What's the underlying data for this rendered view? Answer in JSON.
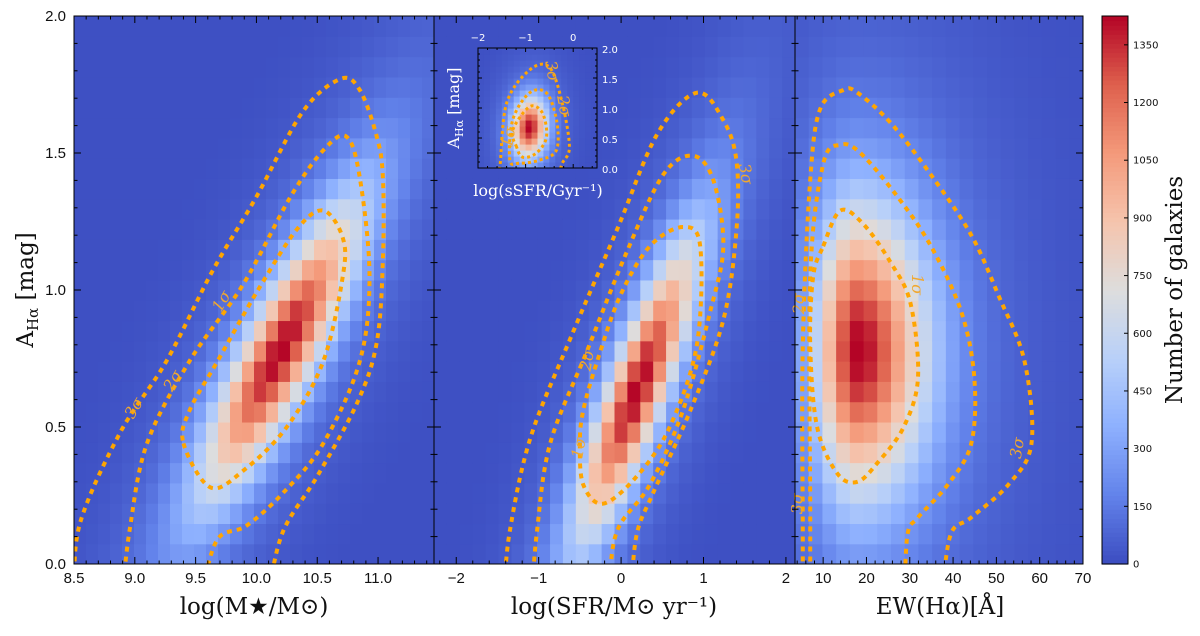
{
  "chart_data": [
    {
      "type": "heatmap",
      "panel": "left",
      "xlabel": "log(M★/M⊙)",
      "ylabel": {
        "main": "A",
        "sub": "Hα",
        "rest": " [mag]"
      },
      "xlim": [
        8.5,
        11.46
      ],
      "ylim": [
        0.0,
        2.0
      ],
      "xticks": [
        8.5,
        9.0,
        9.5,
        10.0,
        10.5,
        11.0
      ],
      "xtick_labels": [
        "8.5",
        "9.0",
        "9.5",
        "10.0",
        "10.5",
        "11.0"
      ],
      "yticks": [
        0.0,
        0.5,
        1.0,
        1.5,
        2.0
      ],
      "ytick_labels": [
        "0.0",
        "0.5",
        "1.0",
        "1.5",
        "2.0"
      ],
      "bin_width": [
        0.1,
        0.074
      ],
      "distribution_estimate": {
        "peak_x": 10.2,
        "peak_y": 0.78,
        "peak_count": 1420,
        "sigma_x": 0.44,
        "sigma_y": 0.36,
        "correlation": 0.86
      },
      "contours": [
        {
          "label": "1σ",
          "closed": true,
          "points": [
            [
              9.4,
              0.44
            ],
            [
              9.62,
              0.28
            ],
            [
              9.89,
              0.34
            ],
            [
              10.25,
              0.5
            ],
            [
              10.55,
              0.74
            ],
            [
              10.71,
              1.05
            ],
            [
              10.71,
              1.19
            ],
            [
              10.55,
              1.29
            ],
            [
              10.33,
              1.22
            ],
            [
              10.0,
              0.99
            ],
            [
              9.68,
              0.74
            ],
            [
              9.45,
              0.56
            ]
          ],
          "label_at": [
            9.75,
            0.95
          ],
          "label_rotation": -60
        },
        {
          "label": "2σ",
          "closed": false,
          "points": [
            [
              8.9,
              -0.1
            ],
            [
              8.96,
              0.13
            ],
            [
              9.1,
              0.44
            ],
            [
              9.45,
              0.74
            ],
            [
              9.89,
              1.02
            ],
            [
              10.28,
              1.34
            ],
            [
              10.55,
              1.51
            ],
            [
              10.74,
              1.56
            ],
            [
              10.85,
              1.41
            ],
            [
              10.93,
              1.05
            ],
            [
              10.85,
              0.74
            ],
            [
              10.55,
              0.44
            ],
            [
              10.22,
              0.26
            ],
            [
              9.92,
              0.14
            ],
            [
              9.68,
              0.09
            ],
            [
              9.55,
              -0.1
            ]
          ],
          "label_at": [
            9.35,
            0.66
          ],
          "label_rotation": -60
        },
        {
          "label": "3σ",
          "closed": false,
          "points": [
            [
              8.5,
              -0.1
            ],
            [
              8.55,
              0.15
            ],
            [
              8.88,
              0.48
            ],
            [
              9.26,
              0.74
            ],
            [
              9.64,
              1.07
            ],
            [
              10.0,
              1.34
            ],
            [
              10.38,
              1.65
            ],
            [
              10.69,
              1.77
            ],
            [
              10.85,
              1.73
            ],
            [
              10.99,
              1.56
            ],
            [
              11.04,
              1.41
            ],
            [
              11.04,
              1.11
            ],
            [
              10.99,
              0.81
            ],
            [
              10.83,
              0.59
            ],
            [
              10.5,
              0.32
            ],
            [
              10.22,
              0.12
            ],
            [
              10.1,
              -0.1
            ]
          ],
          "label_at": [
            9.03,
            0.56
          ],
          "label_rotation": -60
        }
      ]
    },
    {
      "type": "heatmap",
      "panel": "middle",
      "xlabel": "log(SFR/M⊙ yr⁻¹)",
      "xlim": [
        -2.27,
        2.11
      ],
      "ylim": [
        0.0,
        2.0
      ],
      "xticks": [
        -2,
        -1,
        0,
        1,
        2
      ],
      "xtick_labels": [
        "−2",
        "−1",
        "0",
        "1",
        "2"
      ],
      "bin_width": [
        0.16,
        0.074
      ],
      "distribution_estimate": {
        "peak_x": 0.2,
        "peak_y": 0.64,
        "peak_count": 1420,
        "sigma_x": 0.5,
        "sigma_y": 0.37,
        "correlation": 0.86
      },
      "contours": [
        {
          "label": "1σ",
          "closed": true,
          "points": [
            [
              -0.5,
              0.44
            ],
            [
              -0.46,
              0.29
            ],
            [
              -0.22,
              0.22
            ],
            [
              0.19,
              0.32
            ],
            [
              0.59,
              0.5
            ],
            [
              0.92,
              0.8
            ],
            [
              0.96,
              1.16
            ],
            [
              0.75,
              1.23
            ],
            [
              0.35,
              1.16
            ],
            [
              -0.01,
              0.98
            ],
            [
              -0.29,
              0.74
            ],
            [
              -0.46,
              0.56
            ]
          ],
          "label_at": [
            -0.45,
            0.42
          ],
          "label_rotation": -80
        },
        {
          "label": "2σ",
          "closed": false,
          "points": [
            [
              -1.08,
              -0.1
            ],
            [
              -1.02,
              0.12
            ],
            [
              -0.86,
              0.44
            ],
            [
              -0.41,
              0.78
            ],
            [
              0.07,
              1.14
            ],
            [
              0.51,
              1.42
            ],
            [
              0.87,
              1.49
            ],
            [
              1.12,
              1.4
            ],
            [
              1.24,
              1.16
            ],
            [
              1.08,
              0.92
            ],
            [
              0.75,
              0.56
            ],
            [
              0.35,
              0.29
            ],
            [
              -0.05,
              0.12
            ],
            [
              -0.15,
              -0.1
            ]
          ],
          "label_at": [
            -0.35,
            0.74
          ],
          "label_rotation": -80
        },
        {
          "label": "3σ",
          "closed": false,
          "points": [
            [
              -1.42,
              -0.1
            ],
            [
              -1.35,
              0.12
            ],
            [
              -1.1,
              0.46
            ],
            [
              -0.62,
              0.82
            ],
            [
              -0.05,
              1.22
            ],
            [
              0.44,
              1.57
            ],
            [
              0.92,
              1.72
            ],
            [
              1.24,
              1.62
            ],
            [
              1.4,
              1.47
            ],
            [
              1.4,
              1.22
            ],
            [
              1.24,
              0.89
            ],
            [
              0.84,
              0.56
            ],
            [
              0.39,
              0.26
            ],
            [
              0.19,
              0.11
            ],
            [
              0.12,
              -0.1
            ]
          ],
          "label_at": [
            1.45,
            1.42
          ],
          "label_rotation": 80
        }
      ],
      "inset": {
        "xlabel": "log(sSFR/Gyr⁻¹)",
        "ylabel": {
          "main": "A",
          "sub": "Hα",
          "rest": " [mag]"
        },
        "xlim": [
          -2.0,
          0.5
        ],
        "ylim": [
          0.0,
          2.0
        ],
        "xticks": [
          -2,
          -1,
          0
        ],
        "xtick_labels": [
          "−2",
          "−1",
          "0"
        ],
        "yticks": [
          0.0,
          0.5,
          1.0,
          1.5,
          2.0
        ],
        "ytick_labels": [
          "0.0",
          "0.5",
          "1.0",
          "1.5",
          "2.0"
        ],
        "distribution_estimate": {
          "peak_x": -0.92,
          "peak_y": 0.68,
          "peak_count": 1420,
          "sigma_x": 0.24,
          "sigma_y": 0.33,
          "correlation": 0.1
        },
        "contours": [
          {
            "label": "1σ",
            "closed": true,
            "points": [
              [
                -1.19,
                0.35
              ],
              [
                -1.27,
                0.63
              ],
              [
                -0.92,
                1.02
              ],
              [
                -0.65,
                0.92
              ],
              [
                -0.56,
                0.52
              ],
              [
                -0.77,
                0.25
              ],
              [
                -1.06,
                0.18
              ]
            ],
            "label_at": [
              -1.25,
              0.5
            ],
            "label_rotation": -80
          },
          {
            "label": "2σ",
            "closed": true,
            "points": [
              [
                -1.33,
                0.13
              ],
              [
                -1.27,
                0.8
              ],
              [
                -0.92,
                1.25
              ],
              [
                -0.56,
                1.25
              ],
              [
                -0.35,
                0.8
              ],
              [
                -0.35,
                0.3
              ],
              [
                -0.71,
                0.13
              ],
              [
                -1.13,
                0.08
              ]
            ],
            "label_at": [
              -0.3,
              1.02
            ],
            "label_rotation": 80
          },
          {
            "label": "3σ",
            "closed": false,
            "points": [
              [
                -1.6,
                -0.1
              ],
              [
                -1.54,
                0.02
              ],
              [
                -1.4,
                1.08
              ],
              [
                -0.92,
                1.63
              ],
              [
                -0.5,
                1.68
              ],
              [
                -0.23,
                1.08
              ],
              [
                -0.08,
                0.35
              ],
              [
                -0.23,
                0.08
              ],
              [
                -0.3,
                -0.1
              ]
            ],
            "label_at": [
              -0.55,
              1.6
            ],
            "label_rotation": 80
          }
        ]
      }
    },
    {
      "type": "heatmap",
      "panel": "right",
      "xlabel": "EW(Hα)[Å]",
      "xlim": [
        3.5,
        70
      ],
      "ylim": [
        0.0,
        2.0
      ],
      "xticks": [
        10,
        20,
        30,
        40,
        50,
        60,
        70
      ],
      "xtick_labels": [
        "10",
        "20",
        "30",
        "40",
        "50",
        "60",
        "70"
      ],
      "bin_width": [
        3.3,
        0.074
      ],
      "distribution_estimate": {
        "peak_x": 17.9,
        "peak_y": 0.78,
        "peak_count": 1420,
        "sigma_x_low": 6.5,
        "sigma_x_high": 11,
        "sigma_y": 0.36,
        "correlation": 0.0
      },
      "contours": [
        {
          "label": "1σ",
          "closed": true,
          "points": [
            [
              10,
              1.16
            ],
            [
              14,
              1.29
            ],
            [
              19.3,
              1.24
            ],
            [
              25.6,
              1.1
            ],
            [
              30.2,
              0.95
            ],
            [
              31.9,
              0.68
            ],
            [
              28.6,
              0.5
            ],
            [
              22.6,
              0.37
            ],
            [
              17.9,
              0.3
            ],
            [
              13.3,
              0.33
            ],
            [
              8.6,
              0.5
            ],
            [
              7,
              0.8
            ],
            [
              7.7,
              1.05
            ]
          ],
          "label_at": [
            30.5,
            1.02
          ],
          "label_rotation": 90
        },
        {
          "label": "2σ",
          "closed": false,
          "points": [
            [
              7,
              -0.1
            ],
            [
              7,
              0.2
            ],
            [
              7,
              1.05
            ],
            [
              10,
              1.46
            ],
            [
              14,
              1.53
            ],
            [
              18.6,
              1.5
            ],
            [
              27.2,
              1.34
            ],
            [
              34.9,
              1.16
            ],
            [
              41.9,
              0.92
            ],
            [
              44.9,
              0.68
            ],
            [
              44.2,
              0.44
            ],
            [
              38.8,
              0.29
            ],
            [
              31.9,
              0.17
            ],
            [
              29.5,
              0.11
            ],
            [
              28.8,
              -0.1
            ]
          ],
          "label_at": [
            5.6,
            0.95
          ],
          "label_rotation": -90
        },
        {
          "label": "3σ",
          "closed": false,
          "points": [
            [
              5.3,
              -0.1
            ],
            [
              5.3,
              0.12
            ],
            [
              5.3,
              0.8
            ],
            [
              7,
              1.4
            ],
            [
              9.3,
              1.66
            ],
            [
              14.7,
              1.73
            ],
            [
              17.9,
              1.72
            ],
            [
              25.6,
              1.61
            ],
            [
              34.9,
              1.42
            ],
            [
              44.2,
              1.2
            ],
            [
              50.5,
              0.98
            ],
            [
              56.5,
              0.74
            ],
            [
              58.1,
              0.44
            ],
            [
              52.8,
              0.29
            ],
            [
              44.2,
              0.17
            ],
            [
              39.5,
              0.11
            ],
            [
              37.5,
              -0.1
            ]
          ],
          "label_at": [
            56,
            0.42
          ],
          "label_rotation": -80
        }
      ],
      "extra_labels": [
        {
          "label": "3σ",
          "label_at": [
            5.2,
            0.22
          ],
          "label_rotation": -90
        }
      ]
    }
  ],
  "colorbar": {
    "label": "Number of galaxies",
    "colormap": "coolwarm",
    "vmin": 0,
    "vmax": 1425,
    "ticks": [
      0,
      150,
      300,
      450,
      600,
      750,
      900,
      1050,
      1200,
      1350
    ],
    "tick_labels": [
      "0",
      "150",
      "300",
      "450",
      "600",
      "750",
      "900",
      "1050",
      "1200",
      "1350"
    ]
  },
  "colors": {
    "contour": "#FFA500",
    "cmap_low": "#3B4CC0",
    "cmap_mid": "#DDDDDD",
    "cmap_high": "#B40426"
  }
}
